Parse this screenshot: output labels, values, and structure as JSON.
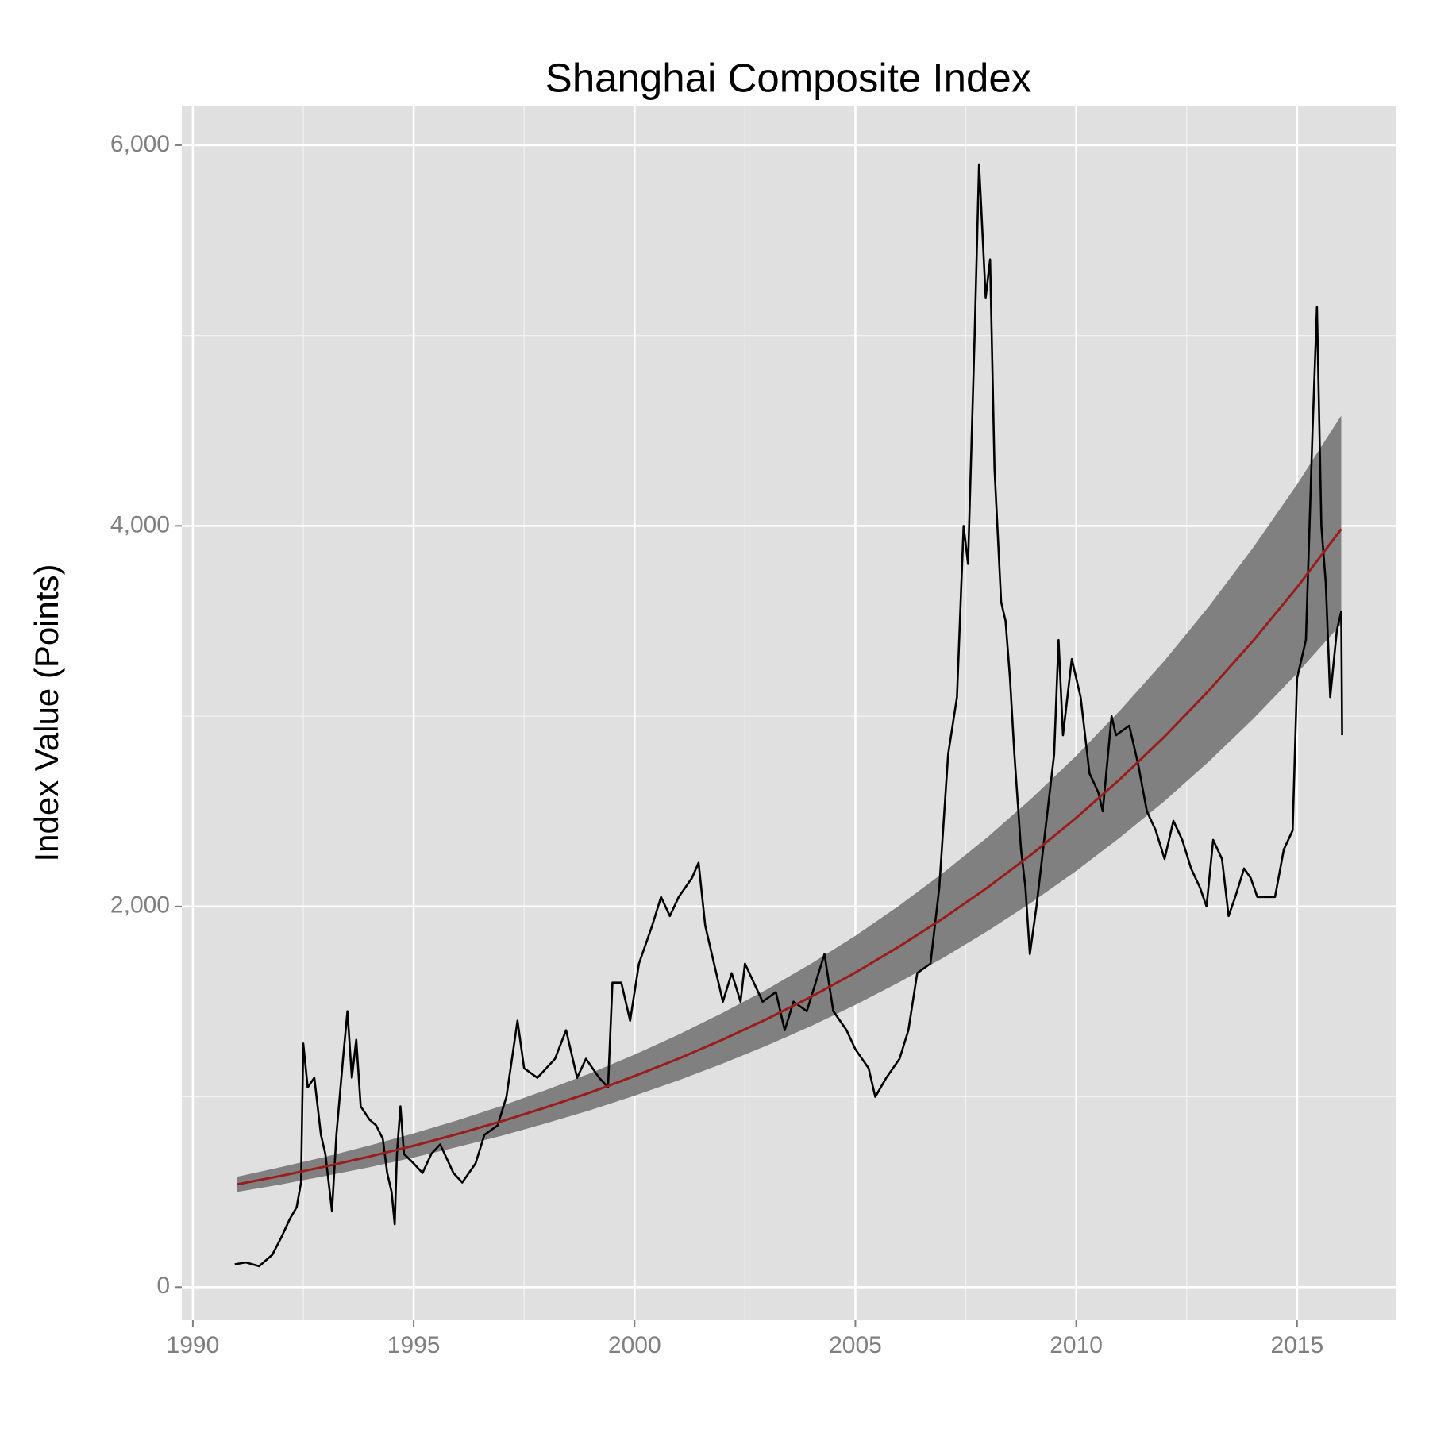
{
  "chart_data": {
    "type": "line",
    "title": "Shanghai Composite Index",
    "y_label": "Index Value (Points)",
    "xlim": [
      1989.75,
      2017.25
    ],
    "ylim": [
      -174,
      6204
    ],
    "xticks": [
      1990,
      1995,
      2000,
      2005,
      2010,
      2015
    ],
    "yticks": [
      0,
      {
        "value": 2000,
        "label": "2,000"
      },
      {
        "value": 4000,
        "label": "4,000"
      },
      {
        "value": 6000,
        "label": "6,000"
      }
    ],
    "grid": true,
    "minor_grid": true,
    "background": "#e0e0e0",
    "series": [
      {
        "color": "#000000",
        "x": [
          1990.95,
          1991.2,
          1991.5,
          1991.8,
          1992.0,
          1992.2,
          1992.35,
          1992.45,
          1992.5,
          1992.6,
          1992.75,
          1992.9,
          1993.0,
          1993.1,
          1993.15,
          1993.25,
          1993.4,
          1993.5,
          1993.6,
          1993.7,
          1993.8,
          1994.0,
          1994.15,
          1994.3,
          1994.4,
          1994.5,
          1994.57,
          1994.62,
          1994.7,
          1994.78,
          1995.0,
          1995.2,
          1995.4,
          1995.6,
          1995.9,
          1996.1,
          1996.4,
          1996.6,
          1996.9,
          1997.1,
          1997.35,
          1997.5,
          1997.8,
          1998.0,
          1998.2,
          1998.45,
          1998.7,
          1998.9,
          1999.2,
          1999.4,
          1999.5,
          1999.7,
          1999.9,
          2000.1,
          2000.4,
          2000.6,
          2000.8,
          2001.0,
          2001.3,
          2001.45,
          2001.6,
          2001.8,
          2002.0,
          2002.2,
          2002.4,
          2002.5,
          2002.7,
          2002.9,
          2003.2,
          2003.4,
          2003.6,
          2003.9,
          2004.1,
          2004.3,
          2004.5,
          2004.8,
          2005.0,
          2005.3,
          2005.45,
          2005.7,
          2006.0,
          2006.2,
          2006.4,
          2006.7,
          2006.9,
          2007.1,
          2007.3,
          2007.45,
          2007.55,
          2007.7,
          2007.8,
          2007.95,
          2008.05,
          2008.15,
          2008.3,
          2008.4,
          2008.5,
          2008.6,
          2008.75,
          2008.85,
          2008.95,
          2009.1,
          2009.3,
          2009.5,
          2009.6,
          2009.7,
          2009.9,
          2010.1,
          2010.3,
          2010.5,
          2010.6,
          2010.8,
          2010.9,
          2011.2,
          2011.4,
          2011.6,
          2011.8,
          2012.0,
          2012.2,
          2012.4,
          2012.6,
          2012.8,
          2012.95,
          2013.1,
          2013.3,
          2013.45,
          2013.6,
          2013.8,
          2013.95,
          2014.1,
          2014.3,
          2014.5,
          2014.7,
          2014.9,
          2015.0,
          2015.2,
          2015.35,
          2015.45,
          2015.55,
          2015.65,
          2015.75,
          2015.9,
          2016.0,
          2016.02
        ],
        "values": [
          120,
          130,
          110,
          170,
          260,
          360,
          420,
          550,
          1280,
          1050,
          1100,
          800,
          700,
          500,
          400,
          800,
          1200,
          1450,
          1100,
          1300,
          950,
          880,
          850,
          780,
          600,
          500,
          330,
          700,
          950,
          700,
          650,
          600,
          700,
          750,
          600,
          550,
          650,
          800,
          850,
          1000,
          1400,
          1150,
          1100,
          1150,
          1200,
          1350,
          1100,
          1200,
          1100,
          1050,
          1600,
          1600,
          1400,
          1700,
          1900,
          2050,
          1950,
          2050,
          2150,
          2230,
          1900,
          1700,
          1500,
          1650,
          1500,
          1700,
          1600,
          1500,
          1550,
          1350,
          1500,
          1450,
          1600,
          1750,
          1450,
          1350,
          1250,
          1150,
          1000,
          1100,
          1200,
          1350,
          1650,
          1700,
          2100,
          2800,
          3100,
          4000,
          3800,
          5000,
          5900,
          5200,
          5400,
          4300,
          3600,
          3500,
          3200,
          2800,
          2300,
          2100,
          1750,
          2000,
          2400,
          2800,
          3400,
          2900,
          3300,
          3100,
          2700,
          2600,
          2500,
          3000,
          2900,
          2950,
          2750,
          2500,
          2400,
          2250,
          2450,
          2350,
          2200,
          2100,
          2000,
          2350,
          2250,
          1950,
          2050,
          2200,
          2150,
          2050,
          2050,
          2050,
          2300,
          2400,
          3200,
          3400,
          4500,
          5150,
          4000,
          3700,
          3100,
          3450,
          3550,
          2900
        ]
      },
      {
        "color": "#9b1c1c",
        "band_color": "#808080",
        "x": [
          1991,
          1992,
          1993,
          1994,
          1995,
          1996,
          1997,
          1998,
          1999,
          2000,
          2001,
          2002,
          2003,
          2004,
          2005,
          2006,
          2007,
          2008,
          2009,
          2010,
          2011,
          2012,
          2013,
          2014,
          2015,
          2016
        ],
        "values": [
          540,
          585,
          634,
          686,
          743,
          805,
          872,
          945,
          1023,
          1109,
          1201,
          1301,
          1409,
          1526,
          1653,
          1791,
          1940,
          2101,
          2276,
          2466,
          2671,
          2893,
          3134,
          3395,
          3677,
          3983
        ],
        "band_upper": [
          580,
          631,
          685,
          744,
          808,
          877,
          953,
          1036,
          1124,
          1222,
          1327,
          1442,
          1565,
          1700,
          1846,
          2006,
          2179,
          2366,
          2570,
          2792,
          3032,
          3292,
          3576,
          3884,
          4218,
          4580
        ],
        "band_lower": [
          500,
          540,
          584,
          630,
          681,
          737,
          796,
          861,
          930,
          1006,
          1087,
          1175,
          1270,
          1372,
          1483,
          1603,
          1732,
          1872,
          2023,
          2187,
          2364,
          2554,
          2761,
          2984,
          3225,
          3485
        ]
      }
    ]
  }
}
